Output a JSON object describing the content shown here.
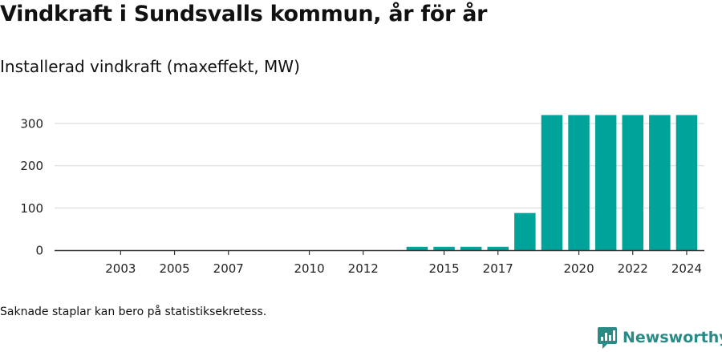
{
  "title": "Vindkraft i Sundsvalls kommun, år för år",
  "subtitle": "Installerad vindkraft (maxeffekt, MW)",
  "footnote": "Saknade staplar kan bero på statistiksekretess.",
  "brand": {
    "name": "Newsworthy",
    "icon": "newsworthy-logo-icon"
  },
  "colors": {
    "bar": "#00a39a",
    "grid": "#dddddd",
    "axis": "#333333",
    "brand": "#2a8a86"
  },
  "chart_data": {
    "type": "bar",
    "title": "Vindkraft i Sundsvalls kommun, år för år",
    "subtitle": "Installerad vindkraft (maxeffekt, MW)",
    "xlabel": "",
    "ylabel": "",
    "categories": [
      2002,
      2003,
      2004,
      2005,
      2006,
      2007,
      2008,
      2009,
      2010,
      2011,
      2012,
      2013,
      2014,
      2015,
      2016,
      2017,
      2018,
      2019,
      2020,
      2021,
      2022,
      2023,
      2024
    ],
    "values": [
      0,
      0,
      0,
      0,
      0,
      0,
      0,
      0,
      0,
      0,
      0,
      0,
      8,
      8,
      8,
      8,
      88,
      320,
      320,
      320,
      320,
      320,
      320
    ],
    "x_tick_labels": [
      "2003",
      "2005",
      "2007",
      "2010",
      "2012",
      "2015",
      "2017",
      "2020",
      "2022",
      "2024"
    ],
    "y_ticks": [
      0,
      100,
      200,
      300
    ],
    "ylim": [
      0,
      320
    ],
    "grid": true,
    "legend": "none"
  }
}
